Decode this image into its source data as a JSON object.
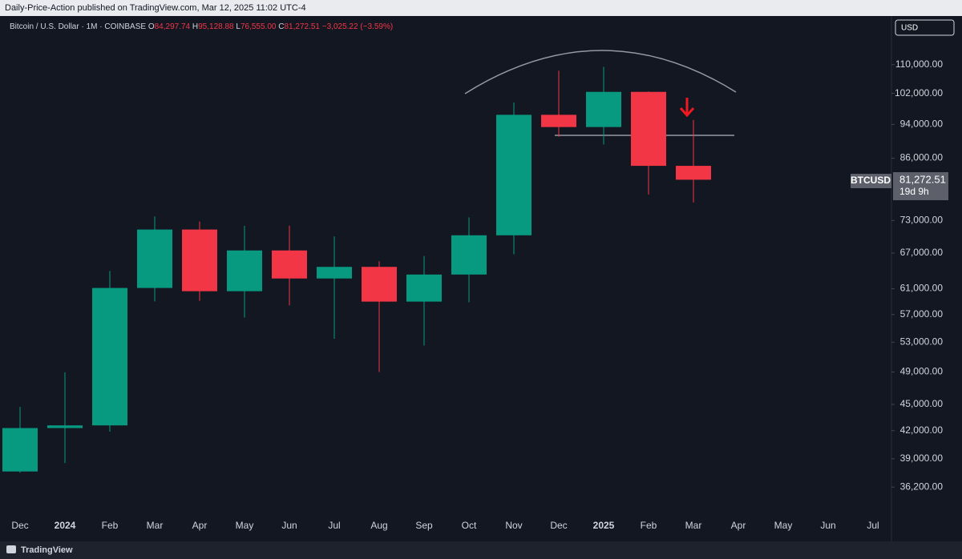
{
  "publisher": "Daily-Price-Action published on TradingView.com, Mar 12, 2025 11:02 UTC-4",
  "footer": "TradingView",
  "currency_button": "USD",
  "legend": {
    "symbol": "Bitcoin / U.S. Dollar · 1M · COINBASE",
    "ohlc": [
      {
        "key": "O",
        "value": "84,297.74"
      },
      {
        "key": "H",
        "value": "95,128.88"
      },
      {
        "key": "L",
        "value": "76,555.00"
      },
      {
        "key": "C",
        "value": "81,272.51"
      }
    ],
    "change": "−3,025.22 (−3.59%)"
  },
  "last_price": {
    "symbol": "BTCUSD",
    "label": "81,272.51",
    "countdown": "19d 9h"
  },
  "chart_data": {
    "type": "candlestick",
    "categories": [
      "Dec",
      "2024",
      "Feb",
      "Mar",
      "Apr",
      "May",
      "Jun",
      "Jul",
      "Aug",
      "Sep",
      "Oct",
      "Nov",
      "Dec",
      "2025",
      "Feb",
      "Mar",
      "Apr",
      "May",
      "Jun",
      "Jul"
    ],
    "open": [
      37718,
      42283,
      42580,
      61130,
      71290,
      60610,
      67470,
      62673,
      64619,
      58974,
      63327,
      70215,
      96407,
      93354,
      102405,
      84297.74,
      null,
      null,
      null,
      null
    ],
    "high": [
      44700,
      48969,
      63913,
      73794,
      72797,
      71979,
      71997,
      70000,
      65596,
      66500,
      73620,
      99588,
      108268,
      109358,
      102500,
      95128.88,
      null,
      null,
      null,
      null
    ],
    "low": [
      37600,
      38555,
      41884,
      59005,
      59101,
      56555,
      58402,
      53485,
      49000,
      52550,
      58867,
      66800,
      91000,
      89164,
      78167,
      76555,
      null,
      null,
      null,
      null
    ],
    "close": [
      42283,
      42580,
      61130,
      71290,
      60610,
      67470,
      62673,
      64619,
      58974,
      63327,
      70215,
      96407,
      93354,
      102405,
      84297,
      81272.51,
      null,
      null,
      null,
      null
    ],
    "up_color": "#089981",
    "down_color": "#f23645",
    "log_scale": true,
    "ylim": [
      33500,
      124500
    ],
    "yticks": [
      {
        "value": 36200,
        "label": "36,200.00"
      },
      {
        "value": 39000,
        "label": "39,000.00"
      },
      {
        "value": 42000,
        "label": "42,000.00"
      },
      {
        "value": 45000,
        "label": "45,000.00"
      },
      {
        "value": 49000,
        "label": "49,000.00"
      },
      {
        "value": 53000,
        "label": "53,000.00"
      },
      {
        "value": 57000,
        "label": "57,000.00"
      },
      {
        "value": 61000,
        "label": "61,000.00"
      },
      {
        "value": 67000,
        "label": "67,000.00"
      },
      {
        "value": 73000,
        "label": "73,000.00"
      },
      {
        "value": 86000,
        "label": "86,000.00"
      },
      {
        "value": 94000,
        "label": "94,000.00"
      },
      {
        "value": 102000,
        "label": "102,000.00"
      },
      {
        "value": 110000,
        "label": "110,000.00"
      }
    ],
    "grid": false
  }
}
